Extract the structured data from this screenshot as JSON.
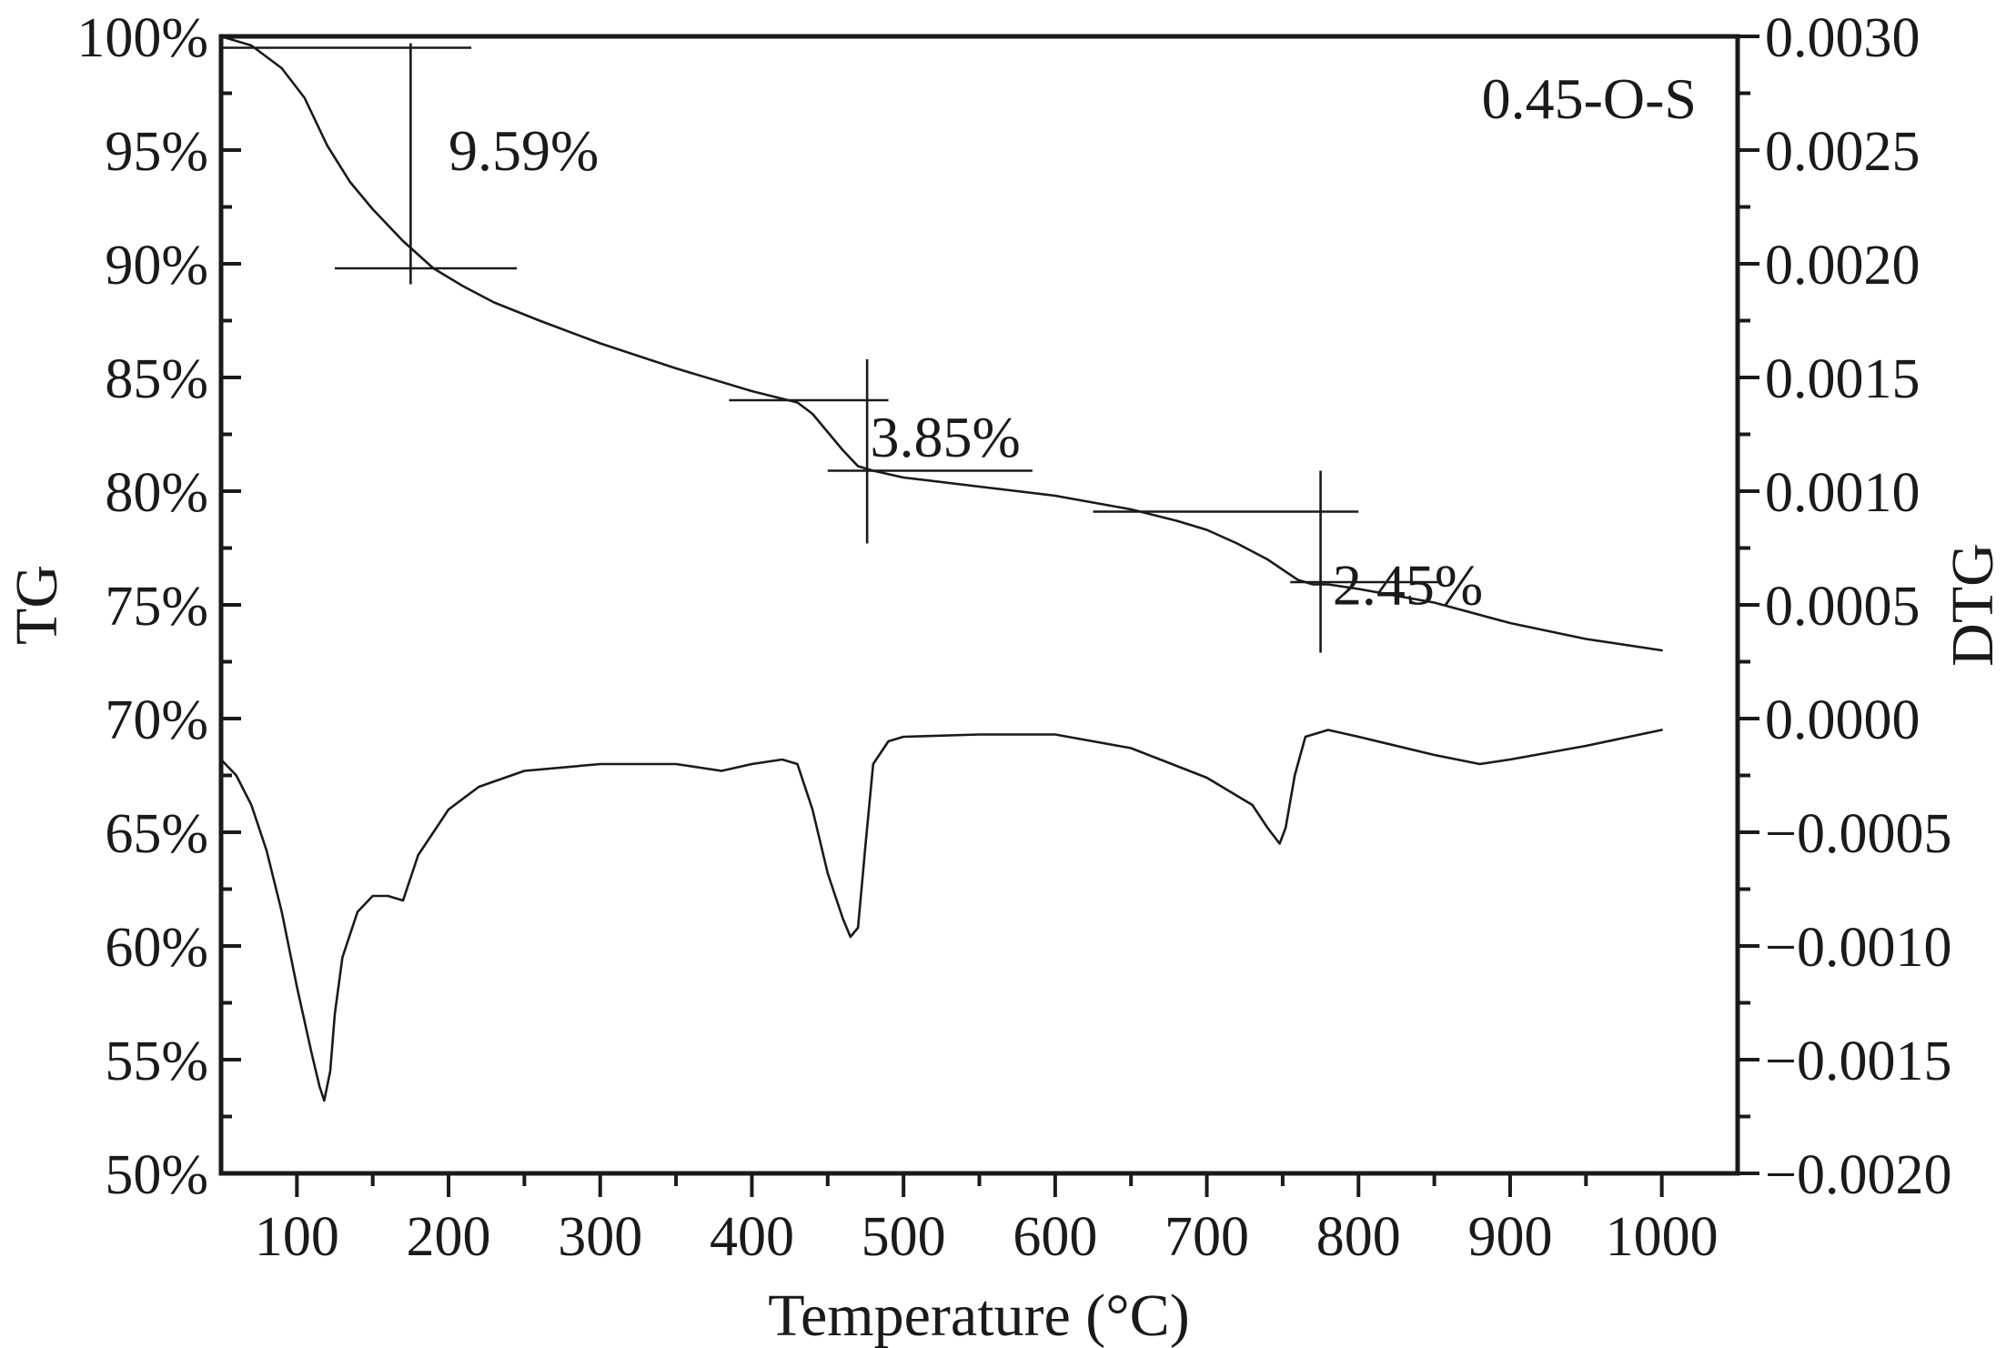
{
  "chart_data": {
    "type": "line",
    "sample_label": "0.45-O-S",
    "xlabel": "Temperature (°C)",
    "ylabel_left": "TG",
    "ylabel_right": "DTG",
    "xlim": [
      50,
      1050
    ],
    "x_ticks": [
      100,
      200,
      300,
      400,
      500,
      600,
      700,
      800,
      900,
      1000
    ],
    "x_tick_labels": [
      "100",
      "200",
      "300",
      "400",
      "500",
      "600",
      "700",
      "800",
      "900",
      "1000"
    ],
    "ylim_left": [
      50,
      100
    ],
    "y_left_ticks": [
      50,
      55,
      60,
      65,
      70,
      75,
      80,
      85,
      90,
      95,
      100
    ],
    "y_left_tick_labels": [
      "50%",
      "55%",
      "60%",
      "65%",
      "70%",
      "75%",
      "80%",
      "85%",
      "90%",
      "95%",
      "100%"
    ],
    "ylim_right": [
      -0.002,
      0.003
    ],
    "y_right_ticks": [
      -0.002,
      -0.0015,
      -0.001,
      -0.0005,
      0.0,
      0.0005,
      0.001,
      0.0015,
      0.002,
      0.0025,
      0.003
    ],
    "y_right_tick_labels": [
      "−0.0020",
      "−0.0015",
      "−0.0010",
      "−0.0005",
      "0.0000",
      "0.0005",
      "0.0010",
      "0.0015",
      "0.0020",
      "0.0025",
      "0.0030"
    ],
    "grid": false,
    "series": [
      {
        "axis": "left",
        "x": [
          50,
          70,
          90,
          105,
          120,
          135,
          150,
          170,
          190,
          210,
          230,
          260,
          300,
          350,
          400,
          430,
          440,
          450,
          460,
          470,
          480,
          500,
          550,
          600,
          650,
          680,
          700,
          720,
          740,
          760,
          770,
          780,
          800,
          850,
          900,
          950,
          1000
        ],
        "values": [
          100.0,
          99.6,
          98.6,
          97.3,
          95.2,
          93.6,
          92.4,
          91.0,
          89.8,
          89.0,
          88.3,
          87.5,
          86.5,
          85.4,
          84.4,
          83.9,
          83.4,
          82.6,
          81.8,
          81.1,
          80.9,
          80.6,
          80.2,
          79.8,
          79.2,
          78.7,
          78.3,
          77.7,
          77.0,
          76.1,
          75.9,
          75.9,
          75.7,
          75.1,
          74.2,
          73.5,
          73.0
        ]
      },
      {
        "axis": "right",
        "x": [
          50,
          60,
          70,
          80,
          90,
          100,
          110,
          115,
          118,
          122,
          125,
          130,
          140,
          150,
          160,
          170,
          180,
          190,
          200,
          220,
          250,
          300,
          350,
          380,
          400,
          420,
          430,
          440,
          450,
          460,
          465,
          470,
          475,
          480,
          490,
          500,
          550,
          600,
          650,
          700,
          730,
          740,
          748,
          752,
          758,
          765,
          780,
          800,
          850,
          880,
          900,
          950,
          1000
        ],
        "values": [
          -0.00018,
          -0.00025,
          -0.00038,
          -0.00058,
          -0.00085,
          -0.00118,
          -0.00148,
          -0.00162,
          -0.00168,
          -0.00155,
          -0.0013,
          -0.00105,
          -0.00085,
          -0.00078,
          -0.00078,
          -0.0008,
          -0.0006,
          -0.0005,
          -0.0004,
          -0.0003,
          -0.00023,
          -0.0002,
          -0.0002,
          -0.00023,
          -0.0002,
          -0.00018,
          -0.0002,
          -0.0004,
          -0.00068,
          -0.00088,
          -0.00096,
          -0.00092,
          -0.00055,
          -0.0002,
          -0.0001,
          -8e-05,
          -7e-05,
          -7e-05,
          -0.00013,
          -0.00026,
          -0.00038,
          -0.00048,
          -0.00055,
          -0.00048,
          -0.00025,
          -8e-05,
          -5e-05,
          -8e-05,
          -0.00016,
          -0.0002,
          -0.00018,
          -0.00012,
          -5e-05
        ]
      }
    ],
    "annotations": [
      {
        "text": "9.59%",
        "text_x": 200,
        "text_y": 95.0,
        "h_lines": [
          {
            "y": 99.5,
            "x1": 50,
            "x2": 215
          },
          {
            "y": 89.8,
            "x1": 125,
            "x2": 245
          }
        ],
        "v_line": {
          "x": 175,
          "y1": 89.1,
          "y2": 99.7
        }
      },
      {
        "text": "3.85%",
        "text_x": 478,
        "text_y": 82.4,
        "h_lines": [
          {
            "y": 84.0,
            "x1": 385,
            "x2": 490
          },
          {
            "y": 80.9,
            "x1": 450,
            "x2": 585
          }
        ],
        "v_line": {
          "x": 476,
          "y1": 77.7,
          "y2": 85.8
        }
      },
      {
        "text": "2.45%",
        "text_x": 783,
        "text_y": 75.9,
        "h_lines": [
          {
            "y": 79.1,
            "x1": 625,
            "x2": 800
          },
          {
            "y": 76.0,
            "x1": 755,
            "x2": 855
          }
        ],
        "v_line": {
          "x": 775,
          "y1": 72.9,
          "y2": 80.9
        }
      }
    ]
  }
}
